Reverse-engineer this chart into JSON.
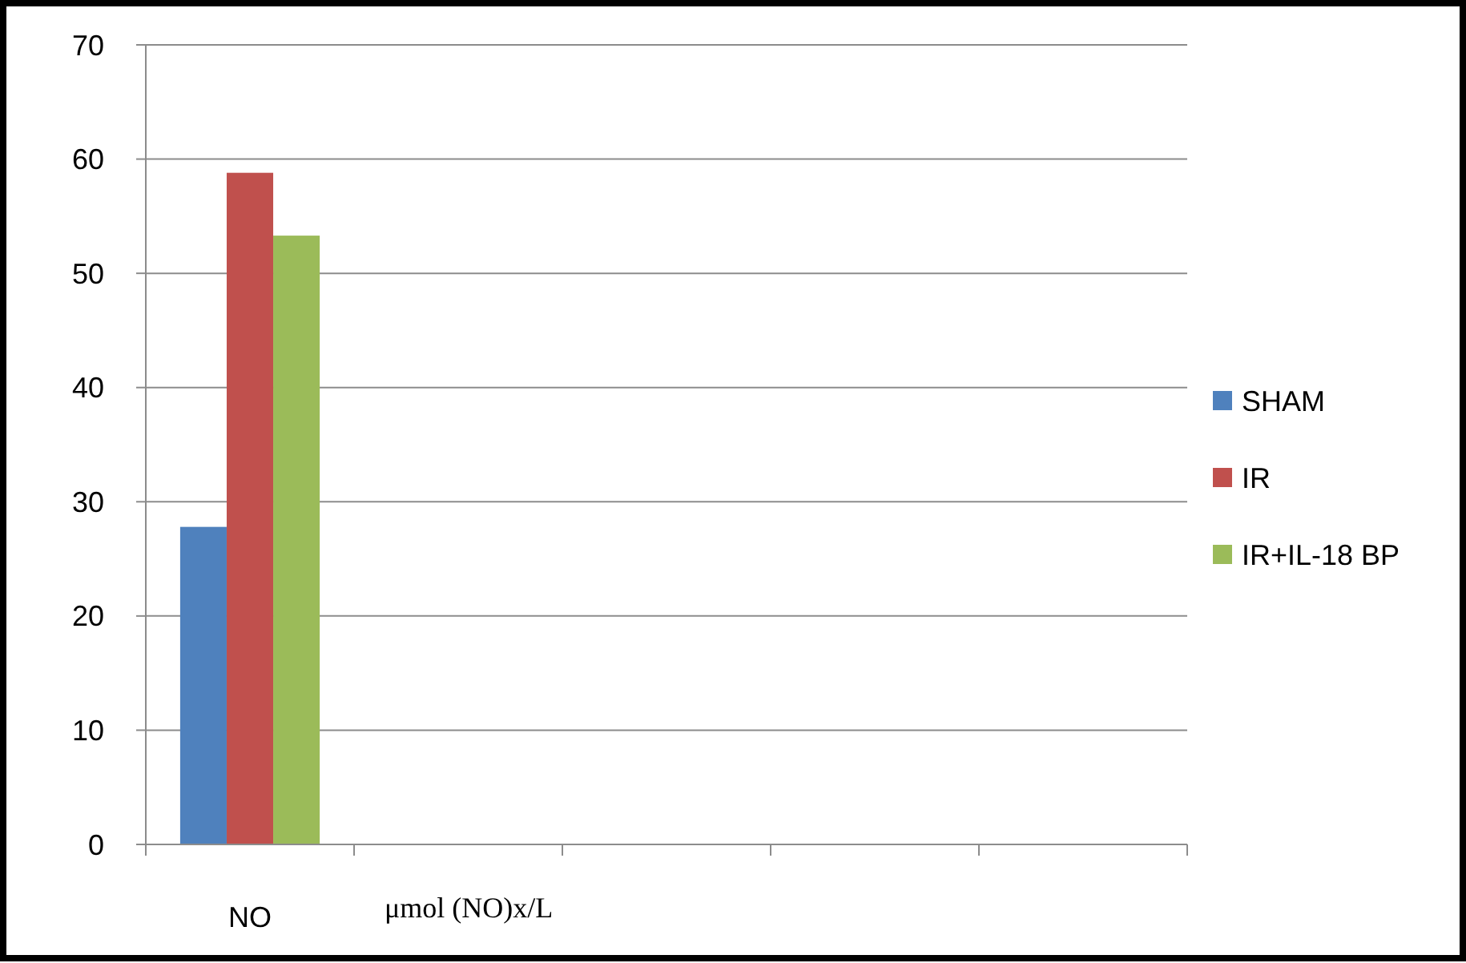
{
  "chart_data": {
    "type": "bar",
    "categories": [
      "NO",
      null,
      null,
      null,
      null
    ],
    "xlabel": "μmol (NO)x/L",
    "series": [
      {
        "name": "SHAM",
        "color": "#4f81bd",
        "values": [
          27.8,
          null,
          null,
          null,
          null
        ]
      },
      {
        "name": "IR",
        "color": "#c0504d",
        "values": [
          58.8,
          null,
          null,
          null,
          null
        ]
      },
      {
        "name": "IR+IL-18 BP",
        "color": "#9bbb59",
        "values": [
          53.3,
          null,
          null,
          null,
          null
        ]
      }
    ],
    "ylim": [
      0,
      70
    ],
    "yticks": [
      0,
      10,
      20,
      30,
      40,
      50,
      60,
      70
    ],
    "grid": "y",
    "legend": "right"
  }
}
